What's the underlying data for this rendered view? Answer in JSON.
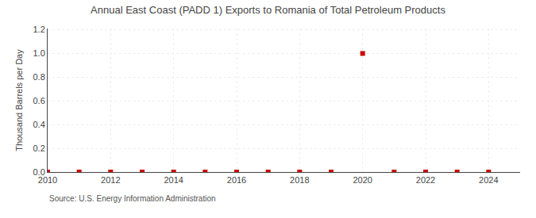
{
  "chart_data": {
    "type": "scatter",
    "title": "Annual East Coast (PADD 1) Exports to Romania of Total Petroleum Products",
    "ylabel": "Thousand Barrels per Day",
    "source": "Source: U.S. Energy Information Administration",
    "x": [
      2010,
      2011,
      2012,
      2013,
      2014,
      2015,
      2016,
      2017,
      2018,
      2019,
      2020,
      2021,
      2022,
      2023,
      2024
    ],
    "values": [
      0.0,
      0.0,
      0.0,
      0.0,
      0.0,
      0.0,
      0.0,
      0.0,
      0.0,
      0.0,
      1.0,
      0.0,
      0.0,
      0.0,
      0.0
    ],
    "color": "#cc0000",
    "marker": "square",
    "xlim": [
      2010,
      2025
    ],
    "xticks": [
      2010,
      2012,
      2014,
      2016,
      2018,
      2020,
      2022,
      2024
    ],
    "ylim": [
      0.0,
      1.21
    ],
    "yticks": [
      {
        "value": 0.0,
        "label": "0.0"
      },
      0.2,
      0.4,
      0.6,
      0.8,
      {
        "value": 1.0,
        "label": "1.0"
      },
      1.2
    ],
    "grid": true
  }
}
